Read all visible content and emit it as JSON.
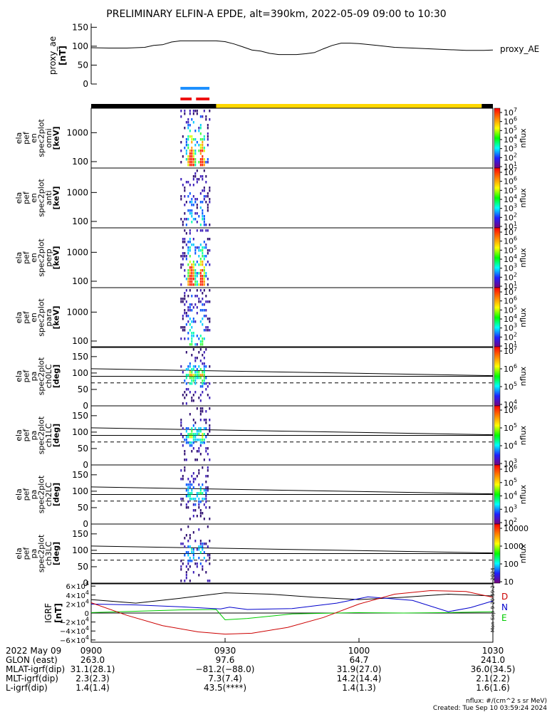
{
  "title": "PRELIMINARY ELFIN-A EPDE, alt=390km, 2022-05-09 09:00 to 10:30",
  "colors": {
    "ae_line": "#000000",
    "blue_bar": "#1e90ff",
    "red_bar": "#ee1111",
    "orbit_black": "#000000",
    "orbit_yellow": "#ffd700",
    "grf_d": "#000000",
    "grf_n": "#0000cc",
    "grf_e": "#00cc00",
    "grf_red": "#cc0000"
  },
  "proxy_ae": {
    "ylabel": "proxy_ae\n[nT]",
    "legend": "proxy_AE",
    "ticks": [
      "150",
      "100",
      "50",
      "0"
    ],
    "tick_values": [
      150,
      100,
      50,
      0
    ],
    "ylim": [
      0,
      160
    ]
  },
  "spec_panels": [
    {
      "ylabel": [
        "ela",
        "pef",
        "en",
        "spec2plot",
        "omni",
        "[keV]"
      ],
      "ticks": [
        "1000",
        "100"
      ],
      "cbar_ticks": [
        "10^7",
        "10^6",
        "10^5",
        "10^4",
        "10^3",
        "10^2",
        "10^1"
      ],
      "cbar_label": "nflux"
    },
    {
      "ylabel": [
        "ela",
        "pef",
        "en",
        "spec2plot",
        "anti",
        "[keV]"
      ],
      "ticks": [
        "1000",
        "100"
      ],
      "cbar_ticks": [
        "10^7",
        "10^6",
        "10^5",
        "10^4",
        "10^3",
        "10^2",
        "10^1"
      ],
      "cbar_label": "nflux"
    },
    {
      "ylabel": [
        "ela",
        "pef",
        "en",
        "spec2plot",
        "perp",
        "[keV]"
      ],
      "ticks": [
        "1000",
        "100"
      ],
      "cbar_ticks": [
        "10^7",
        "10^6",
        "10^5",
        "10^4",
        "10^3",
        "10^2",
        "10^1"
      ],
      "cbar_label": "nflux"
    },
    {
      "ylabel": [
        "ela",
        "pef",
        "en",
        "spec2plot",
        "para",
        "[keV]"
      ],
      "ticks": [
        "1000",
        "100"
      ],
      "cbar_ticks": [
        "10^7",
        "10^6",
        "10^5",
        "10^4",
        "10^3",
        "10^2",
        "10^1"
      ],
      "cbar_label": "nflux"
    }
  ],
  "pa_panels": [
    {
      "ylabel": [
        "ela",
        "pef",
        "pa",
        "spec2plot",
        "ch0LC",
        "[deg]"
      ],
      "ticks": [
        "150",
        "100",
        "50",
        "0"
      ],
      "cbar_ticks": [
        "10^7",
        "10^6",
        "10^5",
        "10^4"
      ],
      "cbar_label": "nflux"
    },
    {
      "ylabel": [
        "ela",
        "pef",
        "pa",
        "spec2plot",
        "ch1LC",
        "[deg]"
      ],
      "ticks": [
        "150",
        "100",
        "50",
        "0"
      ],
      "cbar_ticks": [
        "10^6",
        "10^5",
        "10^4",
        "10^3"
      ],
      "cbar_label": "nflux"
    },
    {
      "ylabel": [
        "ela",
        "pef",
        "pa",
        "spec2plot",
        "ch2LC",
        "[deg]"
      ],
      "ticks": [
        "150",
        "100",
        "50",
        "0"
      ],
      "cbar_ticks": [
        "10^6",
        "10^5",
        "10^4",
        "10^3",
        "10^2"
      ],
      "cbar_label": "nflux"
    },
    {
      "ylabel": [
        "ela",
        "pef",
        "pa",
        "spec2plot",
        "ch3LC",
        "[deg]"
      ],
      "ticks": [
        "150",
        "100",
        "50",
        "0"
      ],
      "cbar_ticks": [
        "10000",
        "1000",
        "100",
        "10"
      ],
      "cbar_label": "nflux"
    }
  ],
  "igrf": {
    "ylabel": "IGRF\n[nT]",
    "ticks": [
      "6×10^4",
      "4×10^4",
      "2×10^4",
      "0",
      "−2×10^4",
      "−4×10^4",
      "−6×10^4"
    ],
    "tick_values": [
      60000,
      40000,
      20000,
      0,
      -20000,
      -40000,
      -60000
    ],
    "legend": [
      "D",
      "N",
      "E"
    ],
    "side_note": "Mon Sep 9 20:59:24 2024"
  },
  "time_axis": {
    "ticks": [
      "0900",
      "0930",
      "1000",
      "1030"
    ],
    "start_label": "2022 May 09"
  },
  "ephemeris": [
    {
      "label": "GLON (east)",
      "values": [
        "263.0",
        "97.6",
        "64.7",
        "241.0"
      ]
    },
    {
      "label": "MLAT-igrf(dip)",
      "values": [
        "31.1(28.1)",
        "−81.2(−88.0)",
        "31.9(27.0)",
        "36.0(34.5)"
      ]
    },
    {
      "label": "MLT-igrf(dip)",
      "values": [
        "2.3(2.3)",
        "7.3(7.4)",
        "14.2(14.4)",
        "2.1(2.2)"
      ]
    },
    {
      "label": "L-igrf(dip)",
      "values": [
        "1.4(1.4)",
        "43.5(****)",
        "1.4(1.3)",
        "1.6(1.6)"
      ]
    }
  ],
  "footer": {
    "units": "nflux: #/(cm^2 s sr MeV)",
    "created": "Created: Tue Sep 10 03:59:24 2024"
  },
  "chart_data": {
    "type": "line",
    "x_unit": "minutes after 09:00 UT",
    "xlim": [
      0,
      90
    ],
    "x_ticks": [
      0,
      30,
      60,
      90
    ],
    "series": [
      {
        "name": "proxy_AE",
        "x": [
          0,
          4,
          8,
          12,
          14,
          16,
          18,
          20,
          22,
          24,
          26,
          28,
          30,
          32,
          34,
          36,
          38,
          40,
          42,
          44,
          46,
          48,
          50,
          52,
          54,
          56,
          58,
          60,
          64,
          68,
          72,
          76,
          80,
          84,
          86,
          88,
          90
        ],
        "y": [
          96,
          95,
          95,
          97,
          102,
          104,
          111,
          114,
          114,
          114,
          114,
          114,
          112,
          106,
          98,
          90,
          87,
          81,
          78,
          78,
          78,
          80,
          83,
          93,
          102,
          108,
          108,
          107,
          102,
          97,
          95,
          93,
          91,
          89,
          89,
          89,
          90
        ]
      }
    ],
    "igrf_series": [
      {
        "name": "D",
        "x": [
          0,
          10,
          20,
          30,
          40,
          50,
          60,
          70,
          80,
          90
        ],
        "y": [
          30000,
          22000,
          33000,
          45000,
          42000,
          35000,
          30000,
          35000,
          42000,
          38000
        ]
      },
      {
        "name": "N",
        "x": [
          0,
          10,
          20,
          29,
          31,
          35,
          45,
          55,
          62,
          72,
          80,
          85,
          90
        ],
        "y": [
          20000,
          18000,
          14000,
          9000,
          13000,
          8000,
          10000,
          22000,
          36000,
          28000,
          3000,
          12000,
          27000
        ]
      },
      {
        "name": "E",
        "x": [
          0,
          10,
          20,
          28,
          30,
          35,
          45,
          60,
          70,
          80,
          90
        ],
        "y": [
          1000,
          4000,
          7000,
          8000,
          -15000,
          -12000,
          -2000,
          1000,
          0,
          1000,
          3000
        ]
      },
      {
        "name": "red",
        "x": [
          0,
          8,
          16,
          24,
          30,
          36,
          44,
          52,
          60,
          68,
          76,
          84,
          90
        ],
        "y": [
          23000,
          -5000,
          -28000,
          -42000,
          -47000,
          -45000,
          -32000,
          -10000,
          20000,
          42000,
          50000,
          48000,
          35000
        ]
      }
    ],
    "spectra": {
      "active_interval_minutes": [
        20,
        26.5
      ],
      "energy_range_keV": [
        60,
        7000
      ],
      "pitch_angle_range_deg": [
        0,
        180
      ],
      "loss_cone_deg": 110,
      "anti_loss_cone_deg": 70
    },
    "orbit_bar": {
      "black_until_minute": 28,
      "yellow_until_minute": 87.5
    },
    "event_bars": {
      "blue": [
        20,
        26.5
      ],
      "red": [
        [
          20,
          22.5
        ],
        [
          23.5,
          26.5
        ]
      ]
    }
  }
}
